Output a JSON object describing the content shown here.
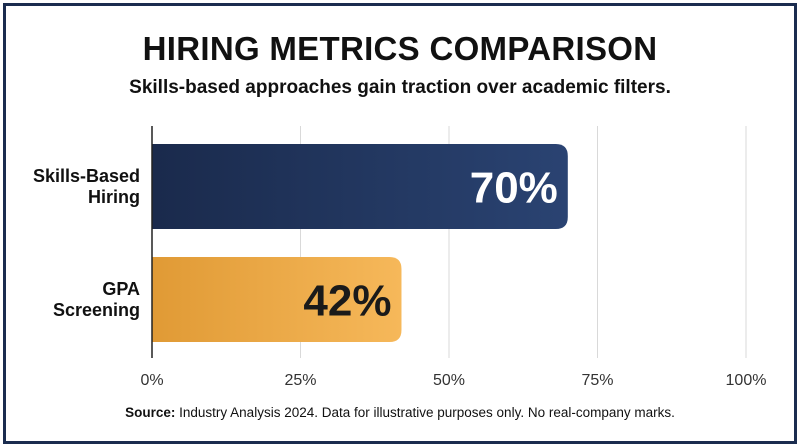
{
  "chart_data": {
    "type": "bar",
    "orientation": "horizontal",
    "title": "HIRING METRICS COMPARISON",
    "subtitle": "Skills-based approaches gain traction over academic filters.",
    "categories": [
      {
        "lines": [
          "Skills-Based",
          "Hiring"
        ],
        "value": 70,
        "label": "70%"
      },
      {
        "lines": [
          "GPA",
          "Screening"
        ],
        "value": 42,
        "label": "42%"
      }
    ],
    "xlim": [
      0,
      100
    ],
    "ticks": [
      {
        "value": 0,
        "label": "0%"
      },
      {
        "value": 25,
        "label": "25%"
      },
      {
        "value": 50,
        "label": "50%"
      },
      {
        "value": 75,
        "label": "75%"
      },
      {
        "value": 100,
        "label": "100%"
      }
    ],
    "grid": true,
    "colors": {
      "skills_bar_dark": "#1a2a4c",
      "skills_bar_light": "#2a4372",
      "gpa_bar_dark": "#e09a35",
      "gpa_bar_light": "#f6b85a",
      "skills_value_text": "#ffffff",
      "gpa_value_text": "#1a1a1a",
      "grid": "#d9d9d9",
      "axis": "#222222"
    }
  },
  "footer": {
    "source_label": "Source:",
    "source_text": " Industry Analysis 2024. Data for illustrative purposes only. No real-company marks."
  }
}
